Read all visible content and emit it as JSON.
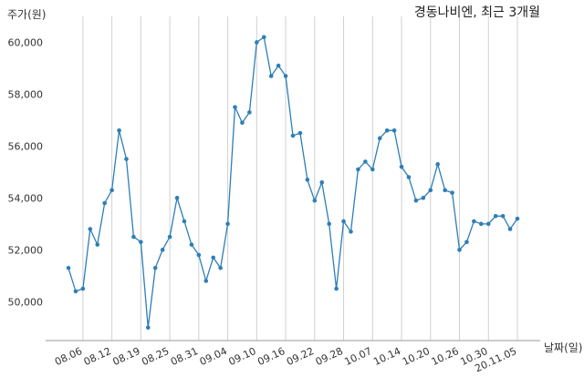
{
  "chart_data": {
    "type": "line",
    "title": "경동나비엔, 최근 3개월",
    "ylabel": "주가(원)",
    "xlabel": "날짜(일)",
    "ylim": [
      48500,
      61000
    ],
    "yticks": [
      50000,
      52000,
      54000,
      56000,
      58000,
      60000
    ],
    "ytick_labels": [
      "50,000",
      "52,000",
      "54,000",
      "56,000",
      "58,000",
      "60,000"
    ],
    "xtick_labels": [
      "08.06",
      "08.12",
      "08.19",
      "08.25",
      "08.31",
      "09.04",
      "09.10",
      "09.16",
      "09.22",
      "09.28",
      "10.07",
      "10.14",
      "10.20",
      "10.26",
      "10.30",
      "20.11.05"
    ],
    "xtick_index": [
      2,
      6,
      10,
      14,
      18,
      22,
      26,
      30,
      34,
      38,
      42,
      46,
      50,
      54,
      58,
      62
    ],
    "grid": "vertical",
    "series": [
      {
        "color": "#2e7fb5",
        "values": [
          51300,
          50400,
          50500,
          52800,
          52200,
          53800,
          54300,
          56600,
          55500,
          52500,
          52300,
          49000,
          51300,
          52000,
          52500,
          54000,
          53100,
          52200,
          51800,
          50800,
          51700,
          51300,
          53000,
          57500,
          56900,
          57300,
          60000,
          60200,
          58700,
          59100,
          58700,
          56400,
          56500,
          54700,
          53900,
          54600,
          53000,
          50500,
          53100,
          52700,
          55100,
          55400,
          55100,
          56300,
          56600,
          56600,
          55200,
          54800,
          53900,
          54000,
          54300,
          55300,
          54300,
          54200,
          52000,
          52300,
          53100,
          53000,
          53000,
          53300,
          53300,
          52800,
          53200
        ]
      }
    ]
  }
}
